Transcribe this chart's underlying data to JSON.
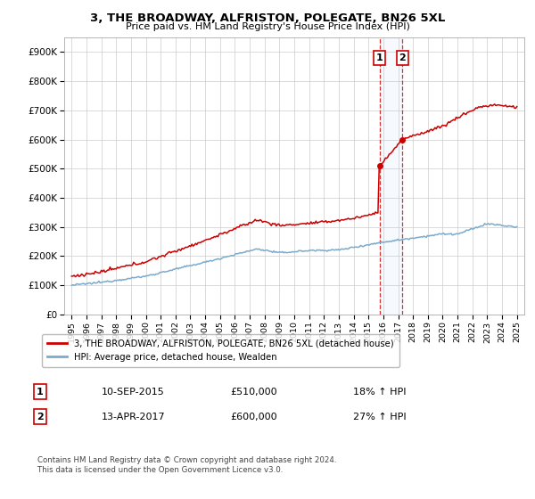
{
  "title1": "3, THE BROADWAY, ALFRISTON, POLEGATE, BN26 5XL",
  "title2": "Price paid vs. HM Land Registry's House Price Index (HPI)",
  "ylabel_ticks": [
    "£0",
    "£100K",
    "£200K",
    "£300K",
    "£400K",
    "£500K",
    "£600K",
    "£700K",
    "£800K",
    "£900K"
  ],
  "ytick_vals": [
    0,
    100000,
    200000,
    300000,
    400000,
    500000,
    600000,
    700000,
    800000,
    900000
  ],
  "ylim": [
    0,
    950000
  ],
  "legend_label1": "3, THE BROADWAY, ALFRISTON, POLEGATE, BN26 5XL (detached house)",
  "legend_label2": "HPI: Average price, detached house, Wealden",
  "sale1_date": "10-SEP-2015",
  "sale1_price": 510000,
  "sale1_hpi": "18% ↑ HPI",
  "sale2_date": "13-APR-2017",
  "sale2_price": 600000,
  "sale2_hpi": "27% ↑ HPI",
  "footnote": "Contains HM Land Registry data © Crown copyright and database right 2024.\nThis data is licensed under the Open Government Licence v3.0.",
  "line_color_red": "#cc0000",
  "line_color_blue": "#7aaacc",
  "background_color": "#ffffff",
  "grid_color": "#cccccc",
  "sale1_x": 2015.75,
  "sale2_x": 2017.29,
  "start_year": 1995,
  "end_year": 2025
}
